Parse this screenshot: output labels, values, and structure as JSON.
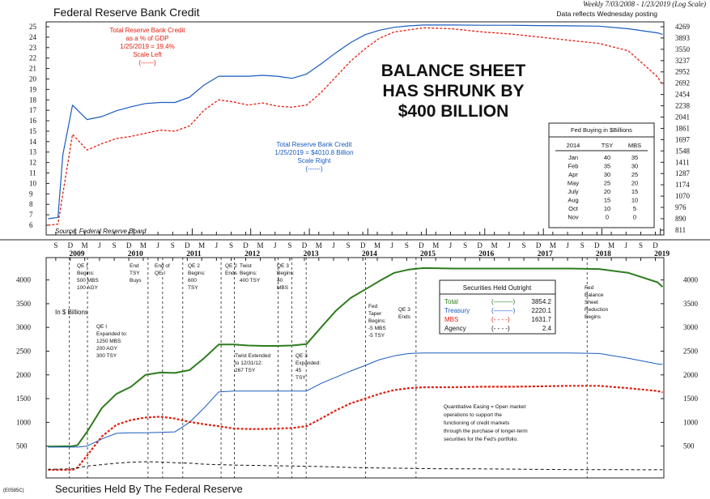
{
  "header": {
    "title": "Federal Reserve Bank Credit",
    "date_range": "Weekly 7/03/2008 - 1/23/2019 (Log Scale)",
    "posting_note": "Data reflects Wednesday posting"
  },
  "footer": {
    "title": "Securities Held By The Federal Reserve",
    "code": "(E0585C)"
  },
  "top_chart": {
    "left_axis": [
      "25",
      "24",
      "23",
      "22",
      "21",
      "20",
      "19",
      "18",
      "17",
      "16",
      "15",
      "14",
      "13",
      "12",
      "11",
      "10",
      "9",
      "8",
      "7",
      "6"
    ],
    "right_axis": [
      "4269",
      "3893",
      "3550",
      "3237",
      "2952",
      "2692",
      "2454",
      "2238",
      "2041",
      "1861",
      "1697",
      "1548",
      "1411",
      "1287",
      "1174",
      "1070",
      "976",
      "890",
      "811"
    ],
    "gdp_label": [
      "Total Reserve Bank Credit",
      "as a % of GDP",
      "1/25/2019 = 19.4%",
      "Scale Left",
      "(------)"
    ],
    "credit_label": [
      "Total Reserve Bank Credit",
      "1/25/2019 = $4010.8 Billion",
      "Scale Right",
      "(------)"
    ],
    "headline": [
      "BALANCE SHEET",
      "HAS SHRUNK BY",
      "$400 BILLION"
    ],
    "source": "Source: Federal Reserve Board",
    "buying_table": {
      "title": "Fed Buying in $Billions",
      "headers": [
        "2014",
        "TSY",
        "MBS"
      ],
      "rows": [
        [
          "Jan",
          "40",
          "35"
        ],
        [
          "Feb",
          "35",
          "30"
        ],
        [
          "Apr",
          "30",
          "25"
        ],
        [
          "May",
          "25",
          "20"
        ],
        [
          "July",
          "20",
          "15"
        ],
        [
          "Aug",
          "15",
          "10"
        ],
        [
          "Oct",
          "10",
          "5"
        ],
        [
          "Nov",
          "0",
          "0"
        ]
      ]
    }
  },
  "time_axis": {
    "month_ticks": [
      "S",
      "D",
      "M",
      "J",
      "S",
      "D",
      "M",
      "J",
      "S",
      "D",
      "M",
      "J",
      "S",
      "D",
      "M",
      "J",
      "S",
      "D",
      "M",
      "J",
      "S",
      "D",
      "M",
      "J",
      "S",
      "D",
      "M",
      "J",
      "S",
      "D",
      "M",
      "J",
      "S",
      "D",
      "M",
      "J",
      "S",
      "D",
      "M",
      "J",
      "S",
      "D",
      "M",
      "J",
      "S",
      "D"
    ],
    "years": [
      "2009",
      "2010",
      "2011",
      "2012",
      "2013",
      "2014",
      "2015",
      "2016",
      "2017",
      "2018",
      "2019"
    ]
  },
  "bottom_chart": {
    "y_axis_left": [
      "4000",
      "3500",
      "3000",
      "2500",
      "2000",
      "1500",
      "1000",
      "500"
    ],
    "y_axis_right": [
      "4000",
      "3500",
      "3000",
      "2500",
      "2000",
      "1500",
      "1000",
      "500"
    ],
    "units_label": "In $ Billions",
    "legend": {
      "title": "Securities Held Outright",
      "rows": [
        {
          "name": "Total",
          "value": "3854.2",
          "color": "#2e7d1e",
          "symbol": "(———)"
        },
        {
          "name": "Treasury",
          "value": "2220.1",
          "color": "#1a5bbf",
          "symbol": "(———)"
        },
        {
          "name": "MBS",
          "value": "1631.7",
          "color": "#e02010",
          "symbol": "(- - - -)"
        },
        {
          "name": "Agency",
          "value": "2.4",
          "color": "#111111",
          "symbol": "(- - - -)"
        }
      ]
    },
    "annotations": {
      "qe1_begins": [
        "QE I",
        "Begins:",
        "500 MBS",
        "100 AGY"
      ],
      "qe1_expanded": [
        "QE I",
        "Expanded to:",
        "1250 MBS",
        "200 AGY",
        "300 TSY"
      ],
      "end_tsy": [
        "End",
        "TSY",
        "Buys"
      ],
      "end_qe1": [
        "End of",
        "QE I"
      ],
      "qe2_begins": [
        "QE 2",
        "Begins:",
        "600",
        "TSY"
      ],
      "qe2_ends": [
        "QE 2",
        "Ends"
      ],
      "twist_begins": [
        "Twist",
        "Begins:",
        "400 TSY"
      ],
      "qe3_begins_top": [
        "QE 3",
        "Begins:",
        "40",
        "MBS"
      ],
      "twist_extended": [
        "Twist Extended",
        "to 12/31/12:",
        "267 TSY"
      ],
      "qe3_expanded": [
        "QE 3",
        "Expanded:",
        "45",
        "TSY"
      ],
      "fed_taper": [
        "Fed",
        "Taper",
        "Begins:",
        "-5 MBS",
        "-5 TSY"
      ],
      "qe3_ends": [
        "QE 3",
        "Ends"
      ],
      "balance_reduction": [
        "Fed",
        "Balance",
        "Sheet",
        "Reduction",
        "Begins"
      ],
      "qe_definition": [
        "Quantitative Easing = Open market",
        "operations to support the",
        "functioning of credit markets",
        "through the purchase of longer-term",
        "securities for the Fed's portfolio."
      ]
    }
  },
  "chart_data": [
    {
      "type": "line",
      "title": "Federal Reserve Bank Credit",
      "x_range": [
        "2008-07-03",
        "2019-01-23"
      ],
      "series": [
        {
          "name": "Total Reserve Bank Credit as a % of GDP",
          "axis": "left",
          "color": "#e02010",
          "x": [
            "2008-07",
            "2008-09",
            "2008-10",
            "2008-12",
            "2009-03",
            "2009-06",
            "2009-09",
            "2009-12",
            "2010-03",
            "2010-06",
            "2010-09",
            "2010-12",
            "2011-03",
            "2011-06",
            "2011-09",
            "2011-12",
            "2012-03",
            "2012-06",
            "2012-09",
            "2012-12",
            "2013-03",
            "2013-06",
            "2013-09",
            "2013-12",
            "2014-03",
            "2014-06",
            "2014-09",
            "2014-12",
            "2015-06",
            "2015-12",
            "2016-06",
            "2016-12",
            "2017-06",
            "2017-12",
            "2018-06",
            "2018-12",
            "2019-01"
          ],
          "values": [
            6.0,
            6.1,
            9.0,
            14.7,
            13.2,
            13.8,
            14.3,
            14.5,
            14.8,
            15.1,
            15.0,
            15.5,
            17.0,
            18.0,
            17.8,
            17.5,
            17.7,
            17.4,
            17.3,
            17.5,
            18.7,
            20.2,
            21.7,
            22.9,
            23.9,
            24.5,
            24.7,
            24.9,
            24.8,
            24.5,
            24.3,
            24.0,
            23.7,
            23.4,
            22.7,
            20.2,
            19.4
          ]
        },
        {
          "name": "Total Reserve Bank Credit ($ Billion)",
          "axis": "right",
          "color": "#1a5bbf",
          "x": [
            "2008-07",
            "2008-09",
            "2008-10",
            "2008-12",
            "2009-03",
            "2009-06",
            "2009-09",
            "2009-12",
            "2010-03",
            "2010-06",
            "2010-09",
            "2010-12",
            "2011-03",
            "2011-06",
            "2011-09",
            "2011-12",
            "2012-03",
            "2012-06",
            "2012-09",
            "2012-12",
            "2013-03",
            "2013-06",
            "2013-09",
            "2013-12",
            "2014-03",
            "2014-06",
            "2014-09",
            "2014-12",
            "2015-06",
            "2015-12",
            "2016-06",
            "2016-12",
            "2017-06",
            "2017-12",
            "2018-06",
            "2018-12",
            "2019-01"
          ],
          "values": [
            890,
            900,
            1500,
            2250,
            2000,
            2050,
            2150,
            2220,
            2280,
            2300,
            2300,
            2400,
            2650,
            2850,
            2850,
            2850,
            2870,
            2850,
            2800,
            2900,
            3150,
            3450,
            3750,
            4000,
            4150,
            4250,
            4300,
            4330,
            4330,
            4320,
            4320,
            4310,
            4300,
            4290,
            4200,
            4060,
            4011
          ]
        }
      ],
      "left_axis": {
        "ylim": [
          6,
          25
        ]
      },
      "right_axis": {
        "ylim": [
          811,
          4269
        ],
        "scale": "log"
      }
    },
    {
      "type": "line",
      "title": "Securities Held By The Federal Reserve",
      "ylabel": "In $ Billions",
      "ylim": [
        0,
        4300
      ],
      "x_range": [
        "2008-07-03",
        "2019-01-23"
      ],
      "x": [
        "2008-07",
        "2008-12",
        "2009-01",
        "2009-03",
        "2009-06",
        "2009-09",
        "2009-12",
        "2010-03",
        "2010-06",
        "2010-09",
        "2010-12",
        "2011-03",
        "2011-06",
        "2011-09",
        "2011-12",
        "2012-03",
        "2012-06",
        "2012-09",
        "2012-12",
        "2013-03",
        "2013-06",
        "2013-09",
        "2013-12",
        "2014-03",
        "2014-06",
        "2014-09",
        "2014-12",
        "2015-06",
        "2015-12",
        "2016-06",
        "2016-12",
        "2017-06",
        "2017-12",
        "2018-06",
        "2018-12",
        "2019-01"
      ],
      "series": [
        {
          "name": "Total",
          "color": "#2e7d1e",
          "values": [
            490,
            500,
            520,
            800,
            1300,
            1600,
            1750,
            2000,
            2050,
            2040,
            2100,
            2350,
            2640,
            2640,
            2620,
            2610,
            2610,
            2620,
            2650,
            3000,
            3350,
            3620,
            3800,
            3980,
            4150,
            4220,
            4250,
            4240,
            4240,
            4240,
            4240,
            4240,
            4230,
            4150,
            3950,
            3854
          ]
        },
        {
          "name": "Treasury",
          "color": "#1a5bbf",
          "values": [
            480,
            480,
            480,
            500,
            650,
            770,
            780,
            780,
            790,
            800,
            1000,
            1300,
            1640,
            1660,
            1660,
            1660,
            1660,
            1660,
            1660,
            1820,
            1950,
            2080,
            2200,
            2320,
            2400,
            2450,
            2460,
            2460,
            2460,
            2460,
            2460,
            2460,
            2450,
            2350,
            2230,
            2220
          ]
        },
        {
          "name": "MBS",
          "color": "#e02010",
          "values": [
            0,
            0,
            50,
            300,
            700,
            950,
            1050,
            1100,
            1120,
            1080,
            1010,
            960,
            920,
            870,
            860,
            860,
            870,
            880,
            920,
            1080,
            1250,
            1400,
            1500,
            1600,
            1680,
            1720,
            1740,
            1740,
            1750,
            1750,
            1760,
            1770,
            1770,
            1720,
            1660,
            1632
          ]
        },
        {
          "name": "Agency",
          "color": "#111111",
          "values": [
            10,
            20,
            40,
            80,
            110,
            140,
            160,
            170,
            165,
            150,
            140,
            120,
            110,
            100,
            95,
            90,
            85,
            80,
            75,
            70,
            60,
            50,
            45,
            40,
            35,
            30,
            25,
            22,
            20,
            15,
            10,
            5,
            4,
            3,
            2.4,
            2.4
          ]
        }
      ]
    }
  ]
}
